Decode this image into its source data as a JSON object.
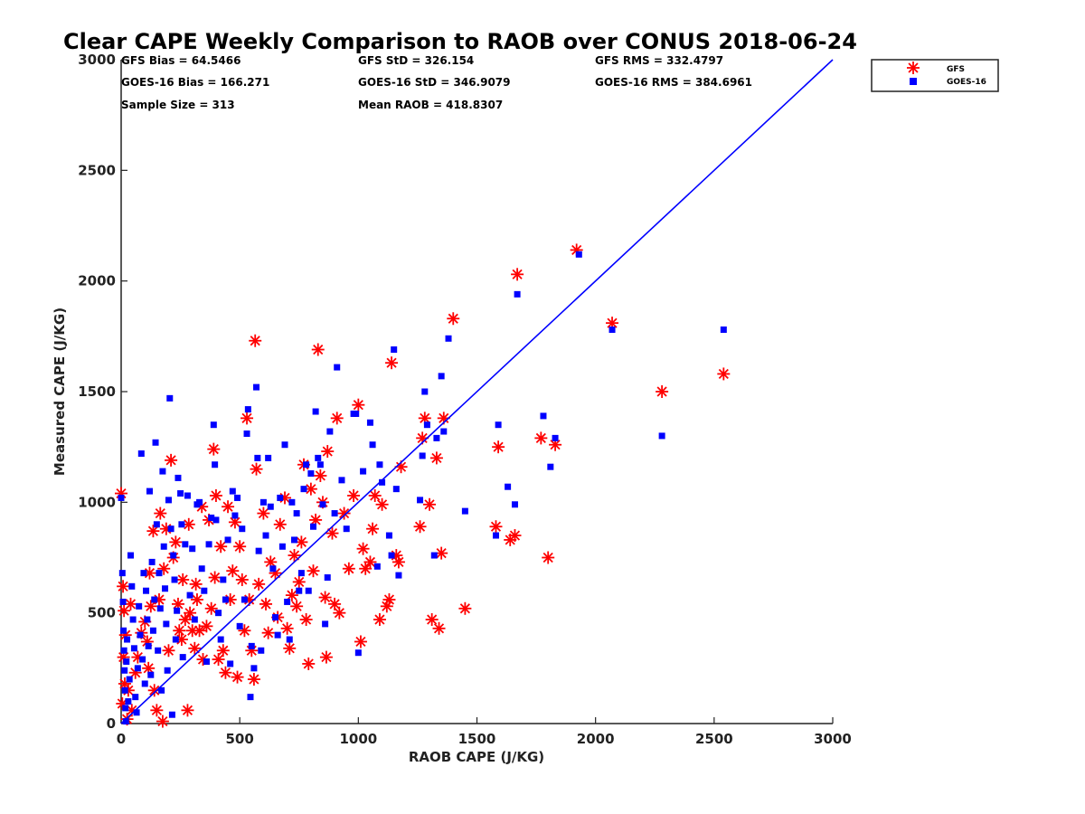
{
  "chart_data": {
    "type": "scatter",
    "title": "Clear CAPE Weekly Comparison to RAOB over CONUS 2018-06-24",
    "xlabel": "RAOB CAPE (J/KG)",
    "ylabel": "Measured CAPE (J/KG)",
    "xlim": [
      0,
      3000
    ],
    "ylim": [
      0,
      3000
    ],
    "xticks": [
      "0",
      "500",
      "1000",
      "1500",
      "2000",
      "2500",
      "3000"
    ],
    "yticks": [
      "0",
      "500",
      "1000",
      "1500",
      "2000",
      "2500",
      "3000"
    ],
    "grid": false,
    "legend_position": "top-right",
    "stats": [
      "GFS Bias = 64.5466",
      "GFS StD = 326.154",
      "GFS RMS = 332.4797",
      "GOES-16 Bias = 166.271",
      "GOES-16 StD = 346.9079",
      "GOES-16 RMS = 384.6961",
      "Sample Size = 313",
      "Mean RAOB = 418.8307"
    ],
    "colors": {
      "gfs": "#ff0000",
      "goes": "#0000ff",
      "line": "#0000ff"
    },
    "reference_line": {
      "x": [
        0,
        3000
      ],
      "y": [
        0,
        3000
      ]
    },
    "series": [
      {
        "name": "GFS",
        "marker": "asterisk",
        "points": [
          [
            0,
            1040
          ],
          [
            8,
            620
          ],
          [
            12,
            510
          ],
          [
            18,
            400
          ],
          [
            10,
            300
          ],
          [
            15,
            180
          ],
          [
            5,
            90
          ],
          [
            25,
            20
          ],
          [
            30,
            150
          ],
          [
            45,
            60
          ],
          [
            60,
            230
          ],
          [
            70,
            300
          ],
          [
            40,
            540
          ],
          [
            85,
            410
          ],
          [
            100,
            460
          ],
          [
            110,
            370
          ],
          [
            115,
            250
          ],
          [
            120,
            680
          ],
          [
            125,
            530
          ],
          [
            135,
            870
          ],
          [
            140,
            150
          ],
          [
            150,
            60
          ],
          [
            160,
            560
          ],
          [
            165,
            950
          ],
          [
            175,
            10
          ],
          [
            180,
            700
          ],
          [
            190,
            880
          ],
          [
            200,
            330
          ],
          [
            210,
            1190
          ],
          [
            220,
            750
          ],
          [
            230,
            820
          ],
          [
            240,
            540
          ],
          [
            245,
            420
          ],
          [
            255,
            380
          ],
          [
            260,
            650
          ],
          [
            270,
            470
          ],
          [
            280,
            60
          ],
          [
            285,
            900
          ],
          [
            290,
            500
          ],
          [
            300,
            420
          ],
          [
            310,
            340
          ],
          [
            315,
            630
          ],
          [
            320,
            560
          ],
          [
            330,
            420
          ],
          [
            340,
            980
          ],
          [
            345,
            290
          ],
          [
            360,
            440
          ],
          [
            370,
            920
          ],
          [
            380,
            520
          ],
          [
            390,
            1240
          ],
          [
            395,
            660
          ],
          [
            400,
            1030
          ],
          [
            410,
            290
          ],
          [
            420,
            800
          ],
          [
            430,
            330
          ],
          [
            440,
            230
          ],
          [
            450,
            980
          ],
          [
            460,
            560
          ],
          [
            470,
            690
          ],
          [
            480,
            910
          ],
          [
            490,
            210
          ],
          [
            500,
            800
          ],
          [
            510,
            650
          ],
          [
            520,
            420
          ],
          [
            530,
            1380
          ],
          [
            540,
            560
          ],
          [
            550,
            330
          ],
          [
            560,
            200
          ],
          [
            565,
            1730
          ],
          [
            570,
            1150
          ],
          [
            580,
            630
          ],
          [
            600,
            950
          ],
          [
            610,
            540
          ],
          [
            620,
            410
          ],
          [
            630,
            730
          ],
          [
            650,
            680
          ],
          [
            660,
            480
          ],
          [
            670,
            900
          ],
          [
            690,
            1020
          ],
          [
            700,
            430
          ],
          [
            710,
            340
          ],
          [
            720,
            580
          ],
          [
            730,
            760
          ],
          [
            740,
            530
          ],
          [
            750,
            640
          ],
          [
            760,
            820
          ],
          [
            770,
            1170
          ],
          [
            780,
            470
          ],
          [
            790,
            270
          ],
          [
            800,
            1060
          ],
          [
            810,
            690
          ],
          [
            820,
            920
          ],
          [
            830,
            1690
          ],
          [
            840,
            1120
          ],
          [
            850,
            1000
          ],
          [
            860,
            570
          ],
          [
            865,
            300
          ],
          [
            870,
            1230
          ],
          [
            890,
            860
          ],
          [
            900,
            540
          ],
          [
            910,
            1380
          ],
          [
            920,
            500
          ],
          [
            940,
            950
          ],
          [
            960,
            700
          ],
          [
            980,
            1030
          ],
          [
            1000,
            1440
          ],
          [
            1010,
            370
          ],
          [
            1020,
            790
          ],
          [
            1030,
            700
          ],
          [
            1050,
            730
          ],
          [
            1060,
            880
          ],
          [
            1070,
            1030
          ],
          [
            1090,
            470
          ],
          [
            1100,
            990
          ],
          [
            1120,
            530
          ],
          [
            1130,
            560
          ],
          [
            1140,
            1630
          ],
          [
            1160,
            760
          ],
          [
            1170,
            730
          ],
          [
            1180,
            1160
          ],
          [
            1260,
            890
          ],
          [
            1270,
            1290
          ],
          [
            1280,
            1380
          ],
          [
            1300,
            990
          ],
          [
            1310,
            470
          ],
          [
            1330,
            1200
          ],
          [
            1340,
            430
          ],
          [
            1350,
            770
          ],
          [
            1360,
            1380
          ],
          [
            1400,
            1830
          ],
          [
            1450,
            520
          ],
          [
            1580,
            890
          ],
          [
            1590,
            1250
          ],
          [
            1640,
            830
          ],
          [
            1660,
            850
          ],
          [
            1670,
            2030
          ],
          [
            1770,
            1290
          ],
          [
            1800,
            750
          ],
          [
            1830,
            1260
          ],
          [
            1920,
            2140
          ],
          [
            2070,
            1810
          ],
          [
            2280,
            1500
          ],
          [
            2540,
            1580
          ]
        ]
      },
      {
        "name": "GOES-16",
        "marker": "square",
        "points": [
          [
            0,
            1020
          ],
          [
            5,
            680
          ],
          [
            8,
            550
          ],
          [
            10,
            420
          ],
          [
            12,
            330
          ],
          [
            14,
            240
          ],
          [
            16,
            150
          ],
          [
            18,
            70
          ],
          [
            20,
            10
          ],
          [
            22,
            280
          ],
          [
            25,
            380
          ],
          [
            30,
            100
          ],
          [
            35,
            200
          ],
          [
            40,
            760
          ],
          [
            45,
            620
          ],
          [
            50,
            470
          ],
          [
            55,
            340
          ],
          [
            60,
            120
          ],
          [
            65,
            50
          ],
          [
            70,
            250
          ],
          [
            75,
            530
          ],
          [
            80,
            400
          ],
          [
            85,
            1220
          ],
          [
            90,
            290
          ],
          [
            95,
            680
          ],
          [
            100,
            180
          ],
          [
            105,
            600
          ],
          [
            110,
            470
          ],
          [
            115,
            350
          ],
          [
            120,
            1050
          ],
          [
            125,
            220
          ],
          [
            130,
            730
          ],
          [
            135,
            420
          ],
          [
            140,
            560
          ],
          [
            145,
            1270
          ],
          [
            150,
            900
          ],
          [
            155,
            330
          ],
          [
            160,
            680
          ],
          [
            165,
            520
          ],
          [
            170,
            150
          ],
          [
            175,
            1140
          ],
          [
            180,
            800
          ],
          [
            185,
            610
          ],
          [
            190,
            450
          ],
          [
            195,
            240
          ],
          [
            200,
            1010
          ],
          [
            205,
            1470
          ],
          [
            210,
            880
          ],
          [
            215,
            40
          ],
          [
            220,
            760
          ],
          [
            225,
            650
          ],
          [
            230,
            380
          ],
          [
            235,
            510
          ],
          [
            240,
            1110
          ],
          [
            250,
            1040
          ],
          [
            255,
            900
          ],
          [
            260,
            300
          ],
          [
            270,
            810
          ],
          [
            280,
            1030
          ],
          [
            290,
            580
          ],
          [
            300,
            790
          ],
          [
            310,
            470
          ],
          [
            320,
            990
          ],
          [
            330,
            1000
          ],
          [
            340,
            700
          ],
          [
            350,
            600
          ],
          [
            360,
            280
          ],
          [
            370,
            810
          ],
          [
            380,
            930
          ],
          [
            390,
            1350
          ],
          [
            395,
            1170
          ],
          [
            400,
            920
          ],
          [
            410,
            500
          ],
          [
            420,
            380
          ],
          [
            430,
            650
          ],
          [
            440,
            560
          ],
          [
            450,
            830
          ],
          [
            460,
            270
          ],
          [
            470,
            1050
          ],
          [
            480,
            940
          ],
          [
            490,
            1020
          ],
          [
            500,
            440
          ],
          [
            510,
            880
          ],
          [
            520,
            560
          ],
          [
            530,
            1310
          ],
          [
            535,
            1420
          ],
          [
            545,
            120
          ],
          [
            550,
            350
          ],
          [
            560,
            250
          ],
          [
            570,
            1520
          ],
          [
            575,
            1200
          ],
          [
            580,
            780
          ],
          [
            590,
            330
          ],
          [
            600,
            1000
          ],
          [
            610,
            850
          ],
          [
            620,
            1200
          ],
          [
            630,
            980
          ],
          [
            640,
            700
          ],
          [
            650,
            480
          ],
          [
            660,
            400
          ],
          [
            670,
            1020
          ],
          [
            680,
            800
          ],
          [
            690,
            1260
          ],
          [
            700,
            550
          ],
          [
            710,
            380
          ],
          [
            720,
            1000
          ],
          [
            730,
            830
          ],
          [
            740,
            950
          ],
          [
            750,
            600
          ],
          [
            760,
            680
          ],
          [
            770,
            1060
          ],
          [
            780,
            1170
          ],
          [
            790,
            600
          ],
          [
            800,
            1130
          ],
          [
            810,
            890
          ],
          [
            820,
            1410
          ],
          [
            830,
            1200
          ],
          [
            840,
            1170
          ],
          [
            850,
            990
          ],
          [
            860,
            450
          ],
          [
            870,
            660
          ],
          [
            880,
            1320
          ],
          [
            900,
            950
          ],
          [
            910,
            1610
          ],
          [
            930,
            1100
          ],
          [
            950,
            880
          ],
          [
            980,
            1400
          ],
          [
            990,
            1400
          ],
          [
            1000,
            320
          ],
          [
            1020,
            1140
          ],
          [
            1050,
            1360
          ],
          [
            1060,
            1260
          ],
          [
            1080,
            710
          ],
          [
            1090,
            1170
          ],
          [
            1100,
            1090
          ],
          [
            1130,
            850
          ],
          [
            1140,
            760
          ],
          [
            1150,
            1690
          ],
          [
            1160,
            1060
          ],
          [
            1170,
            670
          ],
          [
            1260,
            1010
          ],
          [
            1270,
            1210
          ],
          [
            1280,
            1500
          ],
          [
            1290,
            1350
          ],
          [
            1320,
            760
          ],
          [
            1330,
            1290
          ],
          [
            1350,
            1570
          ],
          [
            1360,
            1320
          ],
          [
            1380,
            1740
          ],
          [
            1450,
            960
          ],
          [
            1580,
            850
          ],
          [
            1590,
            1350
          ],
          [
            1630,
            1070
          ],
          [
            1660,
            990
          ],
          [
            1670,
            1940
          ],
          [
            1780,
            1390
          ],
          [
            1810,
            1160
          ],
          [
            1830,
            1290
          ],
          [
            1930,
            2120
          ],
          [
            2070,
            1780
          ],
          [
            2280,
            1300
          ],
          [
            2540,
            1780
          ]
        ]
      }
    ]
  }
}
